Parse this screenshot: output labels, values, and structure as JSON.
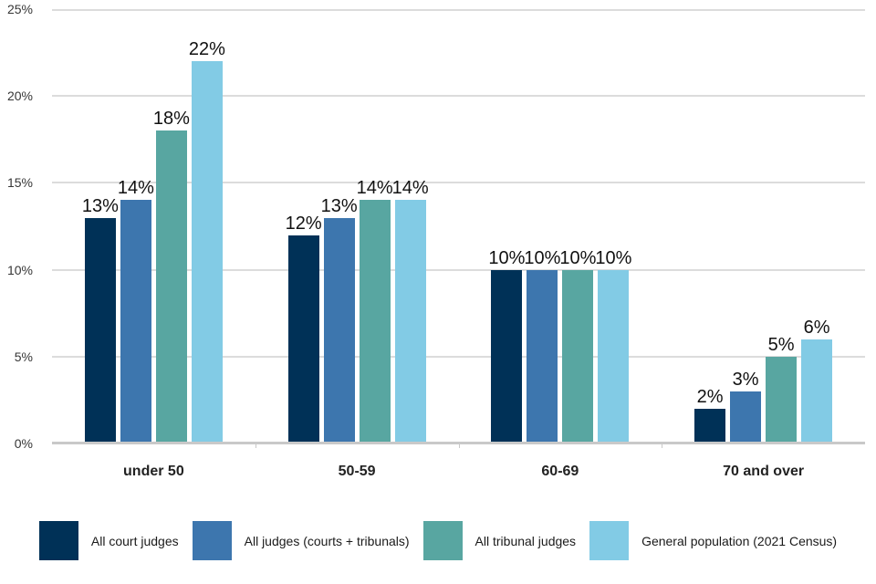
{
  "chart_data": {
    "type": "bar",
    "categories": [
      "under 50",
      "50-59",
      "60-69",
      "70 and over"
    ],
    "series": [
      {
        "name": "All court judges",
        "color": "#003157",
        "values": [
          13,
          12,
          10,
          2
        ]
      },
      {
        "name": "All judges (courts + tribunals)",
        "color": "#3d76ae",
        "values": [
          14,
          13,
          10,
          3
        ]
      },
      {
        "name": "All tribunal judges",
        "color": "#58a6a1",
        "values": [
          18,
          14,
          10,
          5
        ]
      },
      {
        "name": "General population (2021 Census)",
        "color": "#82cbe5",
        "values": [
          22,
          14,
          10,
          6
        ]
      }
    ],
    "value_suffix": "%",
    "y_axis": {
      "min": 0,
      "max": 25,
      "step": 5,
      "tick_labels": [
        "0%",
        "5%",
        "10%",
        "15%",
        "20%",
        "25%"
      ]
    },
    "grid": true,
    "legend_position": "bottom",
    "colors": {
      "gridline": "#dcdcdc",
      "axis_line": "#c9c9c9",
      "data_label_text": "#111111",
      "axis_label_text": "#363636",
      "category_label_text": "#222222",
      "legend_text": "#1a1a1a",
      "background": "#ffffff"
    }
  }
}
